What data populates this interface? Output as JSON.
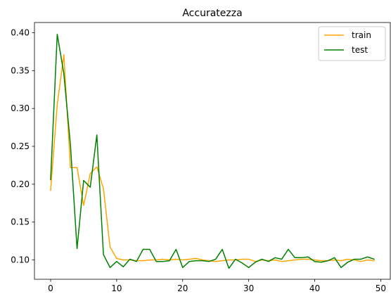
{
  "chart_data": {
    "type": "line",
    "title": "Accuratezza",
    "xlabel": "",
    "ylabel": "",
    "xlim": [
      -2.45,
      51.45
    ],
    "ylim": [
      0.0745,
      0.4135
    ],
    "xticks": [
      0,
      10,
      20,
      30,
      40,
      50
    ],
    "yticks": [
      0.1,
      0.15,
      0.2,
      0.25,
      0.3,
      0.35,
      0.4
    ],
    "grid": false,
    "legend_position": "top-right",
    "x": [
      0,
      1,
      2,
      3,
      4,
      5,
      6,
      7,
      8,
      9,
      10,
      11,
      12,
      13,
      14,
      15,
      16,
      17,
      18,
      19,
      20,
      21,
      22,
      23,
      24,
      25,
      26,
      27,
      28,
      29,
      30,
      31,
      32,
      33,
      34,
      35,
      36,
      37,
      38,
      39,
      40,
      41,
      42,
      43,
      44,
      45,
      46,
      47,
      48,
      49
    ],
    "series": [
      {
        "name": "train",
        "color": "#ffa500",
        "values": [
          0.192,
          0.305,
          0.371,
          0.222,
          0.222,
          0.172,
          0.214,
          0.223,
          0.194,
          0.117,
          0.102,
          0.1,
          0.1,
          0.099,
          0.099,
          0.1,
          0.1,
          0.101,
          0.1,
          0.101,
          0.1,
          0.101,
          0.102,
          0.1,
          0.099,
          0.098,
          0.099,
          0.1,
          0.1,
          0.101,
          0.101,
          0.098,
          0.1,
          0.099,
          0.1,
          0.098,
          0.099,
          0.1,
          0.101,
          0.101,
          0.1,
          0.099,
          0.099,
          0.1,
          0.099,
          0.101,
          0.1,
          0.098,
          0.1,
          0.099
        ]
      },
      {
        "name": "test",
        "color": "#008000",
        "values": [
          0.206,
          0.398,
          0.346,
          0.252,
          0.115,
          0.205,
          0.196,
          0.265,
          0.107,
          0.09,
          0.098,
          0.091,
          0.101,
          0.098,
          0.114,
          0.114,
          0.098,
          0.098,
          0.099,
          0.114,
          0.09,
          0.098,
          0.099,
          0.099,
          0.098,
          0.101,
          0.114,
          0.089,
          0.101,
          0.096,
          0.09,
          0.097,
          0.101,
          0.098,
          0.103,
          0.101,
          0.114,
          0.103,
          0.103,
          0.104,
          0.098,
          0.097,
          0.099,
          0.103,
          0.09,
          0.097,
          0.101,
          0.101,
          0.104,
          0.101
        ]
      }
    ]
  }
}
